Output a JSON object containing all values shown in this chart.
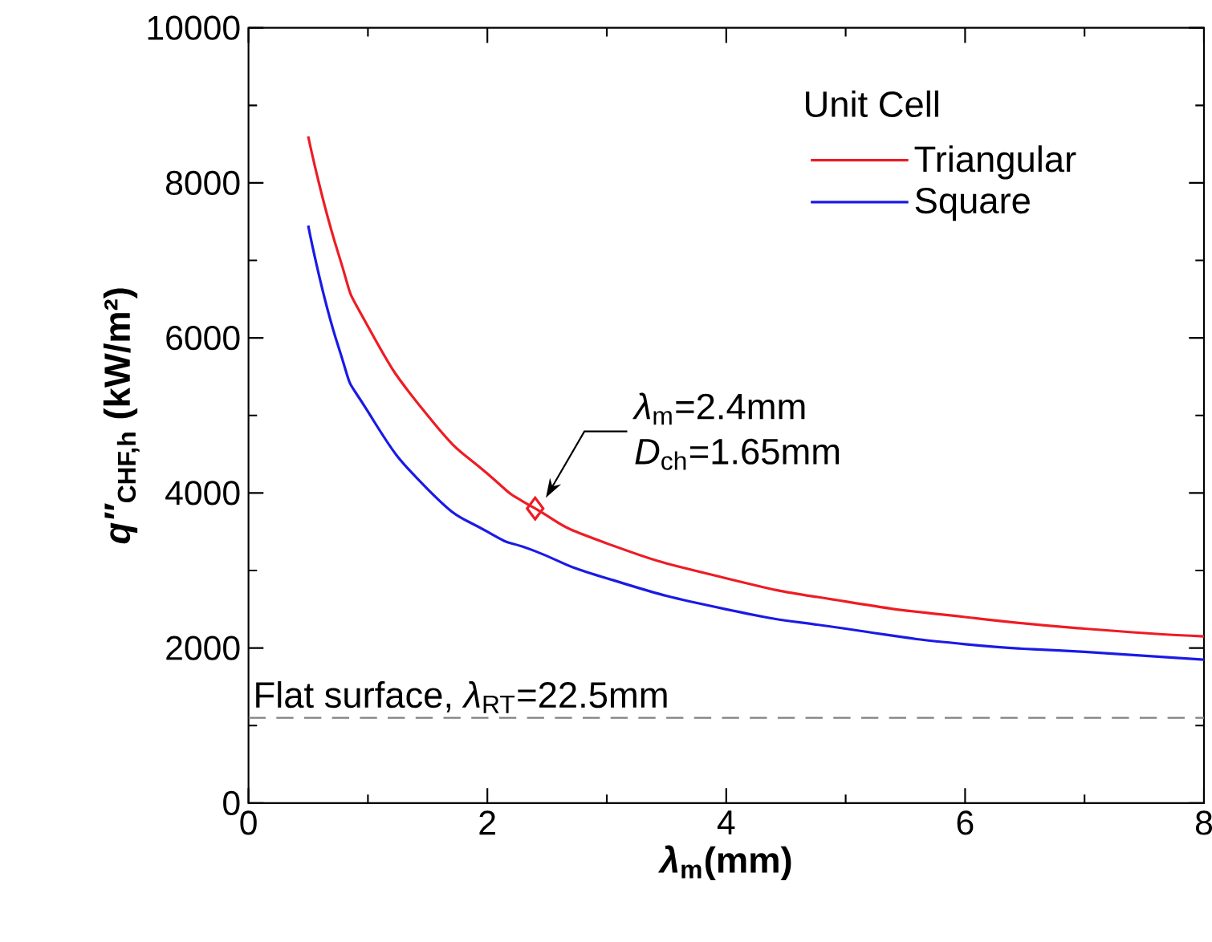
{
  "chart_data": {
    "type": "line",
    "xlabel": "*λ*$_{m}$(mm)",
    "ylabel": "*q″*$_{CHF,h}$ (kW/m²)",
    "legend_title": "Unit Cell",
    "legend": "top right",
    "grid": false,
    "xlim": [
      0,
      8
    ],
    "xticks": [
      0,
      2,
      4,
      6,
      8
    ],
    "ylim": [
      0,
      10000
    ],
    "yticks": [
      0,
      2000,
      4000,
      6000,
      8000,
      10000
    ],
    "series": [
      {
        "name": "Triangular",
        "color": "#ee1c24",
        "x": [
          0.5,
          0.75,
          1,
          1.5,
          2,
          2.4,
          3,
          4,
          5,
          6,
          7,
          8
        ],
        "values": [
          8600,
          7100,
          6150,
          5000,
          4250,
          3800,
          3350,
          2900,
          2600,
          2400,
          2250,
          2150
        ]
      },
      {
        "name": "Square",
        "color": "#1a1ae6",
        "x": [
          0.5,
          0.75,
          1,
          1.5,
          2,
          2.4,
          3,
          4,
          5,
          6,
          7,
          8
        ],
        "values": [
          7450,
          5900,
          5050,
          4050,
          3500,
          3250,
          2900,
          2500,
          2250,
          2050,
          1950,
          1850
        ]
      },
      {
        "type": "scatter",
        "marker": "diamond",
        "color": "#ee1c24",
        "x": [
          2.4
        ],
        "values": [
          3800
        ]
      }
    ],
    "ref_lines": [
      {
        "axis": "y",
        "value": 1100,
        "color": "#808080",
        "line_style": "dashed"
      }
    ],
    "annotations": [
      "Flat surface, *λ*$_{RT}$=22.5mm",
      "*λ*$_{m}$=2.4mm",
      "*D*$_{ch}$=1.65mm"
    ]
  }
}
